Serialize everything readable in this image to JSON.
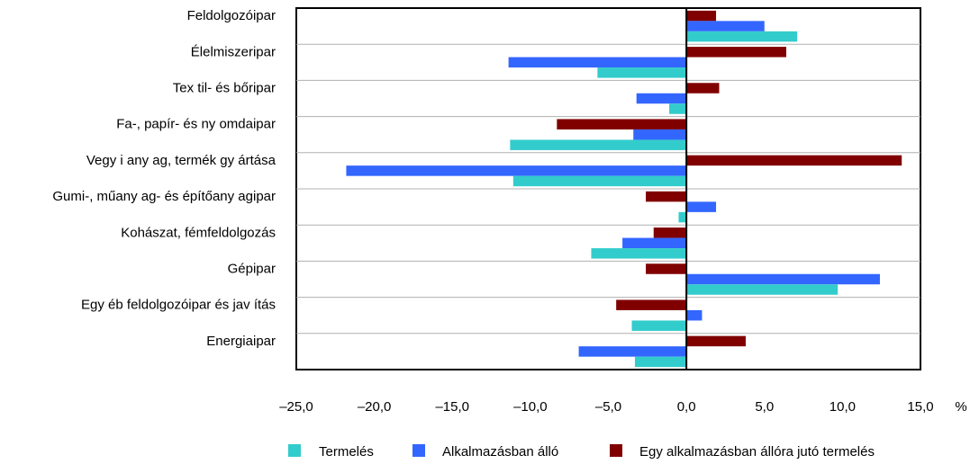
{
  "chart_data": {
    "type": "bar",
    "orientation": "horizontal",
    "categories": [
      "Feldolgozóipar",
      "Élelmiszeripar",
      "Tex til- és bőripar",
      "Fa-, papír- és ny omdaipar",
      "Vegy i any ag, termék gy ártása",
      "Gumi-, műany ag- és építőany agipar",
      "Kohászat, fémfeldolgozás",
      "Gépipar",
      "Egy éb feldolgozóipar és jav ítás",
      "Energiaipar"
    ],
    "series": [
      {
        "name": "Termelés",
        "color": "#33CCCC",
        "values": [
          7.1,
          -5.7,
          -1.1,
          -11.3,
          -11.1,
          -0.5,
          -6.1,
          9.7,
          -3.5,
          -3.3
        ]
      },
      {
        "name": "Alkalmazásban álló",
        "color": "#3366FF",
        "values": [
          5.0,
          -11.4,
          -3.2,
          -3.4,
          -21.8,
          1.9,
          -4.1,
          12.4,
          1.0,
          -6.9
        ]
      },
      {
        "name": "Egy alkalmazásban állóra jutó termelés",
        "color": "#800000",
        "values": [
          1.9,
          6.4,
          2.1,
          -8.3,
          13.8,
          -2.6,
          -2.1,
          -2.6,
          -4.5,
          3.8
        ]
      }
    ],
    "xlim": [
      -25,
      15
    ],
    "x_ticks": [
      "–25,0",
      "–20,0",
      "–15,0",
      "–10,0",
      "–5,0",
      "0,0",
      "5,0",
      "10,0",
      "15,0"
    ],
    "x_unit": "%",
    "grid": "horizontal-category-separators",
    "legend_position": "bottom"
  }
}
